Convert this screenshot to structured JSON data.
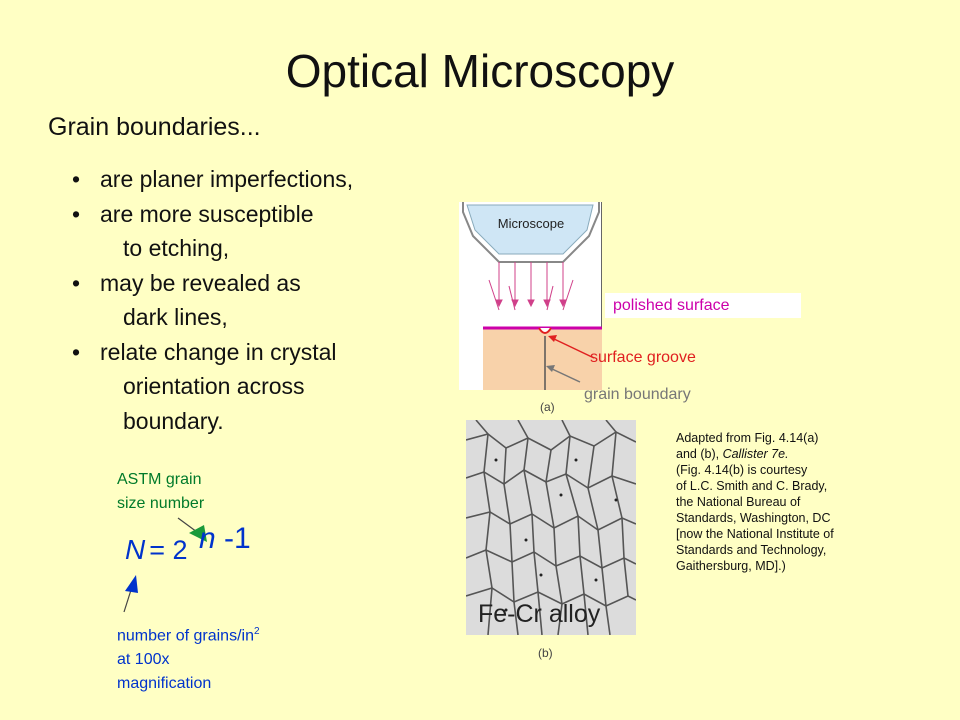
{
  "slide": {
    "title": "Optical Microscopy",
    "subtitle": "Grain boundaries...",
    "bullet_symbol": "•",
    "bullets": {
      "b1": "are planer imperfections,",
      "b2": "are more susceptible",
      "b2c": "to etching,",
      "b3": "may be revealed as",
      "b3c": "dark lines,",
      "b4": "relate change in crystal",
      "b4c1": "orientation across",
      "b4c2": "boundary."
    }
  },
  "astm": {
    "line1": "ASTM grain",
    "line2": "size number"
  },
  "formula": {
    "lhs": "N",
    "eq": "= 2",
    "exp_var": "n",
    "exp_rest": " -1"
  },
  "grains_note": {
    "line1": "number of grains/in",
    "sup": "2",
    "line2": "at 100x",
    "line3": "magnification"
  },
  "figure_a": {
    "microscope_label": "Microscope",
    "polished": "polished surface",
    "groove": "surface groove",
    "grain_boundary": "grain boundary",
    "caption": "(a)"
  },
  "figure_b": {
    "alloy": "Fe-Cr alloy",
    "caption": "(b)"
  },
  "adapted": {
    "l1": "Adapted from Fig. 4.14(a)",
    "l2a": "and (b), ",
    "l2b": "Callister 7e.",
    "l3": "(Fig. 4.14(b) is courtesy",
    "l4": "of L.C. Smith and C. Brady,",
    "l5": "the National Bureau of",
    "l6": "Standards, Washington, DC",
    "l7": "[now the National Institute of",
    "l8": "Standards and Technology,",
    "l9": "Gaithersburg, MD].)"
  },
  "colors": {
    "background": "#ffffc4",
    "astm_green": "#007a2a",
    "formula_blue": "#0033cc",
    "polished_magenta": "#cc00aa",
    "groove_red": "#e02020",
    "grain_peach": "#f8d2aa"
  }
}
